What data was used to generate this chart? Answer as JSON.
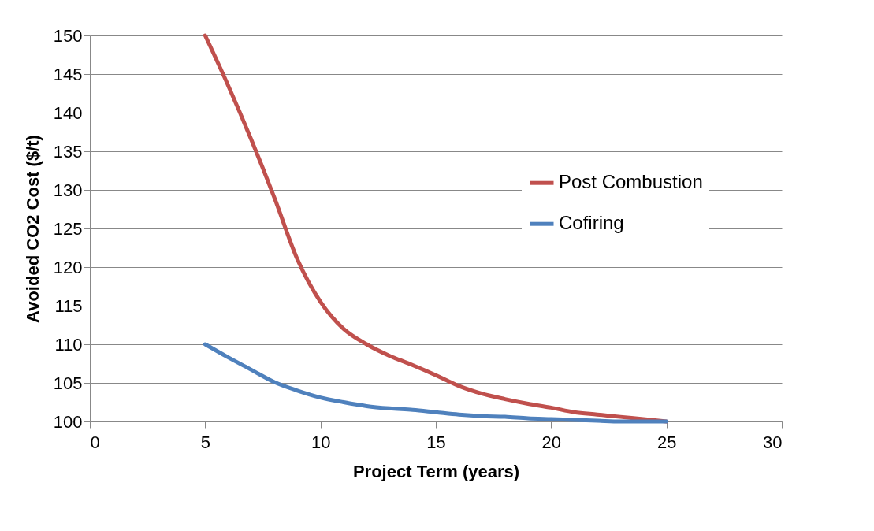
{
  "chart_data": {
    "type": "line",
    "xlabel": "Project Term (years)",
    "ylabel": "Avoided CO2 Cost ($/t)",
    "x": [
      5,
      6,
      7,
      8,
      9,
      10,
      11,
      12,
      13,
      14,
      15,
      16,
      17,
      18,
      19,
      20,
      21,
      22,
      23,
      24,
      25
    ],
    "series": [
      {
        "name": "Post Combustion",
        "color": "#c0504d",
        "values": [
          150,
          143.5,
          136.5,
          129,
          121,
          115.5,
          112,
          110,
          108.5,
          107.3,
          106,
          104.6,
          103.6,
          102.9,
          102.3,
          101.8,
          101.2,
          100.9,
          100.6,
          100.3,
          100
        ]
      },
      {
        "name": "Cofiring",
        "color": "#4f81bd",
        "values": [
          110,
          108.3,
          106.7,
          105.1,
          104,
          103.1,
          102.5,
          102,
          101.7,
          101.5,
          101.2,
          100.9,
          100.7,
          100.6,
          100.4,
          100.3,
          100.2,
          100.1,
          100,
          100,
          100
        ]
      }
    ],
    "xlim": [
      0,
      30
    ],
    "xticks": [
      0,
      5,
      10,
      15,
      20,
      25,
      30
    ],
    "ylim": [
      100,
      150
    ],
    "yticks": [
      100,
      105,
      110,
      115,
      120,
      125,
      130,
      135,
      140,
      145,
      150
    ],
    "grid": "y",
    "legend": "right",
    "marker": "none",
    "line_style": "solid"
  }
}
